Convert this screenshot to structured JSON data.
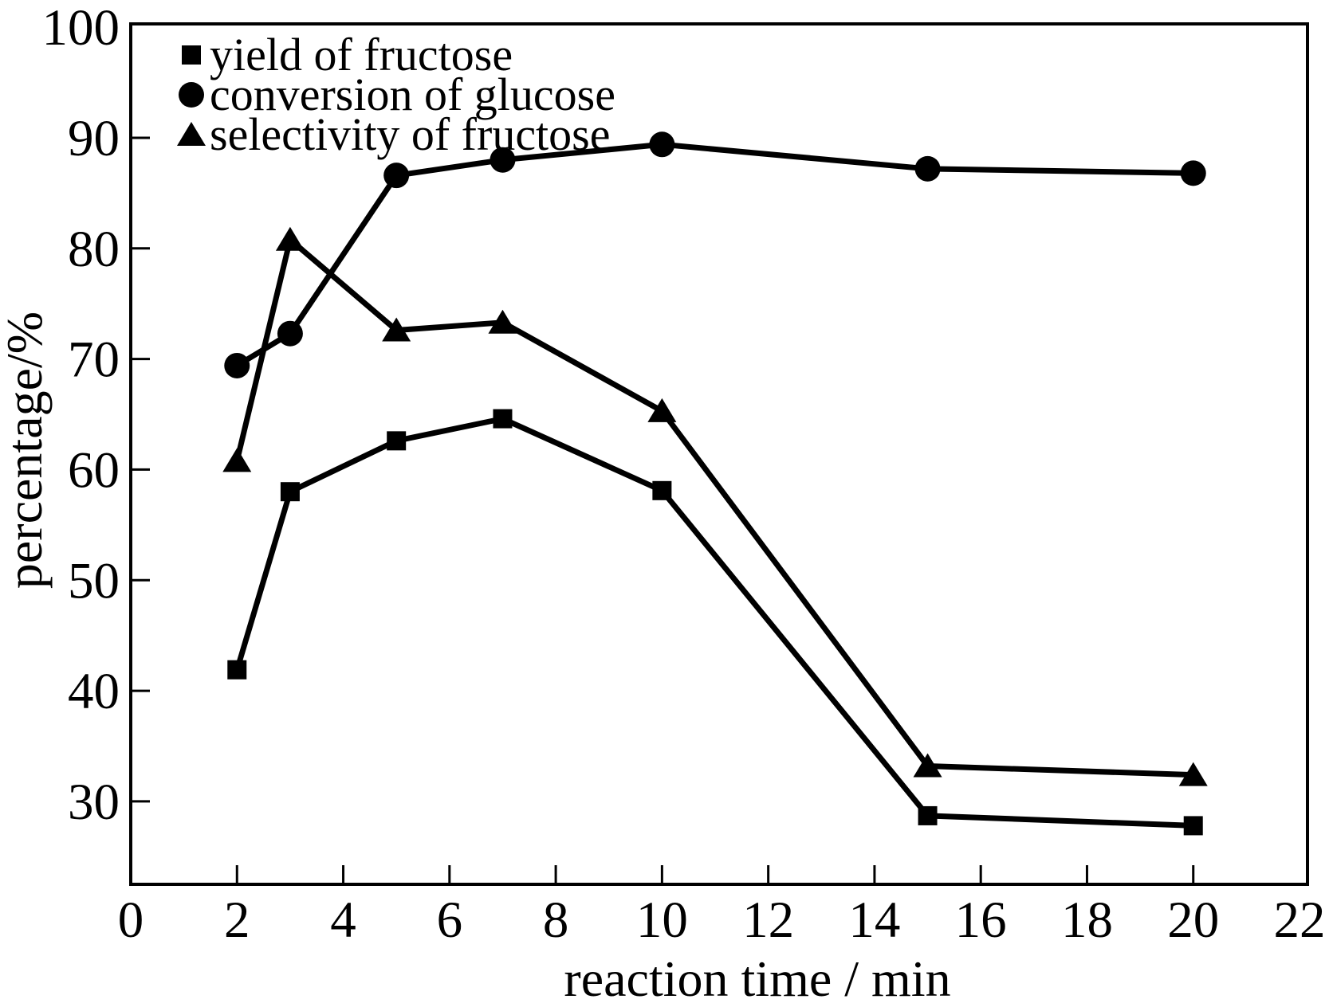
{
  "chart_data": {
    "type": "line",
    "title": "",
    "xlabel": "reaction time / min",
    "ylabel": "percentage/%",
    "x": [
      2,
      3,
      5,
      7,
      10,
      15,
      20
    ],
    "series": [
      {
        "name": "yield of fructose",
        "marker": "square",
        "color": "#000000",
        "values": [
          41.9,
          58.0,
          62.6,
          64.6,
          58.1,
          28.7,
          27.8
        ]
      },
      {
        "name": "conversion of glucose",
        "marker": "circle",
        "color": "#000000",
        "values": [
          69.4,
          72.3,
          86.6,
          88.0,
          89.4,
          87.2,
          86.8
        ]
      },
      {
        "name": "selectivity of fructose",
        "marker": "triangle",
        "color": "#000000",
        "values": [
          60.8,
          80.8,
          72.6,
          73.3,
          65.3,
          33.2,
          32.4
        ]
      }
    ],
    "x_tick_labels": [
      0,
      2,
      4,
      6,
      8,
      10,
      12,
      14,
      16,
      18,
      20,
      22
    ],
    "y_tick_labels": [
      30,
      40,
      50,
      60,
      70,
      80,
      90,
      100
    ],
    "x_tick_marks": [
      2,
      4,
      6,
      8,
      10,
      12,
      14,
      16,
      18,
      20
    ],
    "y_tick_marks": [
      30,
      40,
      50,
      60,
      70,
      80,
      90
    ],
    "xlim": [
      0,
      22.15
    ],
    "ylim": [
      22.5,
      100.3
    ],
    "grid": false,
    "legend_position": "top-left",
    "axis_color": "#000000",
    "background_color": "#ffffff"
  }
}
